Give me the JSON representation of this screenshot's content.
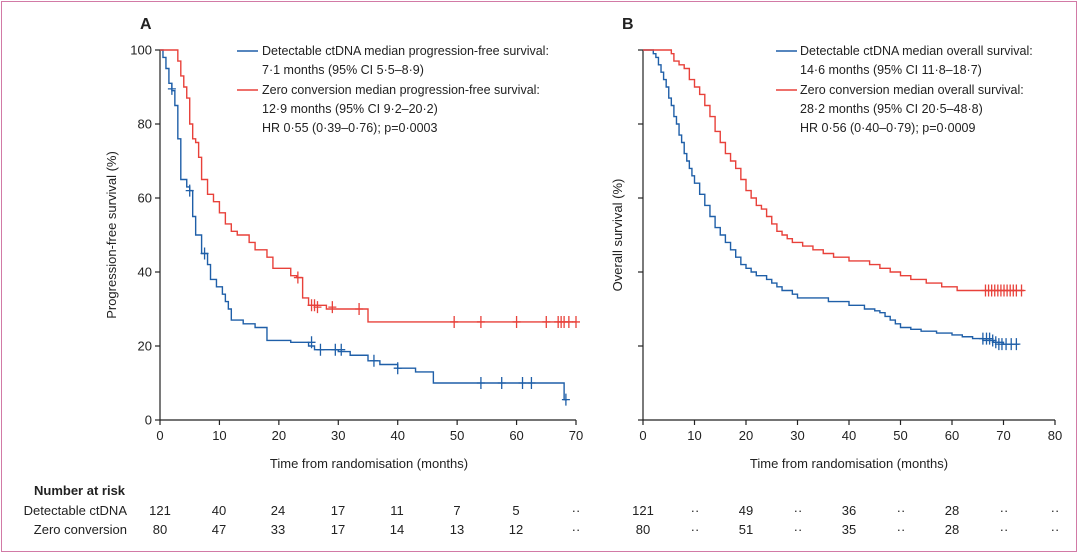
{
  "colors": {
    "blue": "#1f5fa8",
    "red": "#e8413a",
    "border": "#d27aa6",
    "axis": "#222222"
  },
  "risk_table": {
    "title": "Number at risk",
    "row_labels": [
      "Detectable ctDNA",
      "Zero conversion"
    ],
    "panel_a": {
      "detectable": [
        "121",
        "40",
        "24",
        "17",
        "11",
        "7",
        "5",
        "··"
      ],
      "zero": [
        "80",
        "47",
        "33",
        "17",
        "14",
        "13",
        "12",
        "··"
      ]
    },
    "panel_b": {
      "detectable": [
        "121",
        "··",
        "49",
        "··",
        "36",
        "··",
        "28",
        "··",
        "··"
      ],
      "zero": [
        "80",
        "··",
        "51",
        "··",
        "35",
        "··",
        "28",
        "··",
        "··"
      ]
    }
  },
  "chart_data": [
    {
      "type": "line",
      "panel_label": "A",
      "xlabel": "Time from randomisation (months)",
      "ylabel": "Progression-free survival (%)",
      "xlim": [
        0,
        70
      ],
      "ylim": [
        0,
        100
      ],
      "xticks": [
        "0",
        "10",
        "20",
        "30",
        "40",
        "50",
        "60",
        "70"
      ],
      "yticks": [
        "0",
        "20",
        "40",
        "60",
        "80",
        "100"
      ],
      "legend": [
        "Detectable ctDNA median progression-free survival:",
        "7·1 months (95% CI 5·5–8·9)",
        "Zero conversion median progression-free survival:",
        "12·9 months (95% CI 9·2–20·2)",
        "HR 0·55 (0·39–0·76); p=0·0003"
      ],
      "series": [
        {
          "name": "Detectable ctDNA",
          "color": "blue",
          "points": [
            [
              0,
              100
            ],
            [
              0.5,
              98
            ],
            [
              1,
              95
            ],
            [
              1.5,
              91
            ],
            [
              2,
              89
            ],
            [
              2.5,
              85
            ],
            [
              3,
              76
            ],
            [
              3.5,
              65
            ],
            [
              4.5,
              63
            ],
            [
              5,
              62
            ],
            [
              5.5,
              55
            ],
            [
              6,
              50
            ],
            [
              7,
              45
            ],
            [
              8,
              42
            ],
            [
              8.5,
              38
            ],
            [
              9.5,
              36
            ],
            [
              10.5,
              34
            ],
            [
              11,
              32
            ],
            [
              11.5,
              30
            ],
            [
              12,
              27
            ],
            [
              14,
              26
            ],
            [
              16,
              25
            ],
            [
              18,
              21.5
            ],
            [
              22,
              21
            ],
            [
              25,
              20
            ],
            [
              26,
              19
            ],
            [
              28,
              19
            ],
            [
              30,
              18.5
            ],
            [
              32,
              17.5
            ],
            [
              35,
              16
            ],
            [
              37,
              15
            ],
            [
              40,
              14
            ],
            [
              43,
              13
            ],
            [
              46,
              10
            ],
            [
              50,
              10
            ],
            [
              55,
              10
            ],
            [
              60,
              10
            ],
            [
              63,
              10
            ],
            [
              67.5,
              10
            ],
            [
              68,
              5.5
            ],
            [
              68.5,
              5.5
            ]
          ],
          "censored": [
            [
              2,
              89.5
            ],
            [
              5,
              62
            ],
            [
              7.5,
              45
            ],
            [
              25.5,
              21
            ],
            [
              27,
              19
            ],
            [
              29.5,
              19
            ],
            [
              30.5,
              19
            ],
            [
              36,
              16
            ],
            [
              40,
              14
            ],
            [
              54,
              10
            ],
            [
              57.5,
              10
            ],
            [
              61,
              10
            ],
            [
              62.5,
              10
            ],
            [
              68.3,
              5.5
            ]
          ]
        },
        {
          "name": "Zero conversion",
          "color": "red",
          "points": [
            [
              0,
              100
            ],
            [
              2.5,
              100
            ],
            [
              3,
              97
            ],
            [
              3.5,
              93
            ],
            [
              4,
              90
            ],
            [
              4.5,
              87
            ],
            [
              5,
              80
            ],
            [
              5.5,
              76
            ],
            [
              6,
              75
            ],
            [
              6.5,
              71
            ],
            [
              7,
              65
            ],
            [
              8,
              61
            ],
            [
              9,
              59
            ],
            [
              10,
              56
            ],
            [
              11,
              53
            ],
            [
              12,
              51
            ],
            [
              13,
              50
            ],
            [
              15,
              48
            ],
            [
              16,
              46
            ],
            [
              18,
              44
            ],
            [
              19,
              41
            ],
            [
              22,
              39
            ],
            [
              23,
              38.5
            ],
            [
              24,
              33
            ],
            [
              25,
              31
            ],
            [
              28,
              30
            ],
            [
              31,
              30
            ],
            [
              34,
              30
            ],
            [
              35,
              26.5
            ],
            [
              40,
              26.5
            ],
            [
              50,
              26.5
            ],
            [
              60,
              26.5
            ],
            [
              66,
              26.5
            ],
            [
              70,
              26.5
            ]
          ],
          "censored": [
            [
              23.2,
              38.5
            ],
            [
              25.5,
              31
            ],
            [
              26,
              31
            ],
            [
              26.5,
              30.5
            ],
            [
              29,
              30.5
            ],
            [
              33.5,
              30
            ],
            [
              49.5,
              26.5
            ],
            [
              54,
              26.5
            ],
            [
              60,
              26.5
            ],
            [
              65,
              26.5
            ],
            [
              67,
              26.5
            ],
            [
              67.5,
              26.5
            ],
            [
              68,
              26.5
            ],
            [
              68.8,
              26.5
            ],
            [
              70,
              26.5
            ]
          ]
        }
      ]
    },
    {
      "type": "line",
      "panel_label": "B",
      "xlabel": "Time from randomisation (months)",
      "ylabel": "Overall survival (%)",
      "xlim": [
        0,
        80
      ],
      "ylim": [
        0,
        100
      ],
      "xticks": [
        "0",
        "10",
        "20",
        "30",
        "40",
        "50",
        "60",
        "70",
        "80"
      ],
      "yticks": [],
      "legend": [
        "Detectable ctDNA median overall survival:",
        "14·6 months (95% CI 11·8–18·7)",
        "Zero conversion median overall survival:",
        "28·2 months (95% CI 20·5–48·8)",
        "HR 0·56 (0·40–0·79); p=0·0009"
      ],
      "series": [
        {
          "name": "Detectable ctDNA",
          "color": "blue",
          "points": [
            [
              0,
              100
            ],
            [
              1,
              100
            ],
            [
              2,
              99
            ],
            [
              2.5,
              98
            ],
            [
              3,
              96
            ],
            [
              3.5,
              94
            ],
            [
              4,
              92
            ],
            [
              4.5,
              90
            ],
            [
              5,
              87
            ],
            [
              5.5,
              85
            ],
            [
              6,
              82
            ],
            [
              6.5,
              80
            ],
            [
              7,
              77
            ],
            [
              7.5,
              75
            ],
            [
              8,
              72
            ],
            [
              8.5,
              70
            ],
            [
              9,
              68
            ],
            [
              9.5,
              66
            ],
            [
              10,
              64
            ],
            [
              11,
              61
            ],
            [
              12,
              58
            ],
            [
              13,
              55
            ],
            [
              14,
              52
            ],
            [
              15,
              50
            ],
            [
              16,
              48
            ],
            [
              17,
              46
            ],
            [
              18,
              44
            ],
            [
              19,
              42
            ],
            [
              20,
              41
            ],
            [
              21,
              40
            ],
            [
              22,
              39
            ],
            [
              24,
              38
            ],
            [
              25,
              37
            ],
            [
              26,
              36
            ],
            [
              27,
              35
            ],
            [
              29,
              34
            ],
            [
              30,
              33
            ],
            [
              34,
              33
            ],
            [
              36,
              32
            ],
            [
              40,
              31
            ],
            [
              43,
              30
            ],
            [
              45,
              29.5
            ],
            [
              46,
              29
            ],
            [
              47,
              28
            ],
            [
              48,
              27
            ],
            [
              49,
              26
            ],
            [
              50,
              25
            ],
            [
              52,
              24.5
            ],
            [
              54,
              24
            ],
            [
              57,
              23.5
            ],
            [
              60,
              23
            ],
            [
              62,
              22.5
            ],
            [
              64,
              22
            ],
            [
              66,
              21.5
            ],
            [
              68,
              21
            ],
            [
              70,
              20.5
            ],
            [
              72,
              20.5
            ],
            [
              73,
              20.5
            ]
          ],
          "censored": [
            [
              66,
              22
            ],
            [
              66.7,
              22
            ],
            [
              67.3,
              22
            ],
            [
              67.9,
              21.5
            ],
            [
              68.5,
              21
            ],
            [
              69.1,
              20.5
            ],
            [
              69.7,
              20.5
            ],
            [
              70.5,
              20.5
            ],
            [
              71.5,
              20.5
            ],
            [
              72.5,
              20.5
            ]
          ]
        },
        {
          "name": "Zero conversion",
          "color": "red",
          "points": [
            [
              0,
              100
            ],
            [
              5,
              100
            ],
            [
              5.5,
              99
            ],
            [
              6,
              97
            ],
            [
              7,
              96
            ],
            [
              8,
              95
            ],
            [
              9,
              92
            ],
            [
              10,
              90
            ],
            [
              11,
              88
            ],
            [
              12,
              85
            ],
            [
              13,
              82
            ],
            [
              14,
              78
            ],
            [
              15,
              75
            ],
            [
              16,
              72
            ],
            [
              17,
              70
            ],
            [
              18,
              68
            ],
            [
              19,
              65
            ],
            [
              20,
              62
            ],
            [
              21,
              60
            ],
            [
              22,
              58
            ],
            [
              23,
              57
            ],
            [
              24,
              55
            ],
            [
              25,
              53
            ],
            [
              26,
              51
            ],
            [
              27,
              50
            ],
            [
              28,
              49
            ],
            [
              29,
              48
            ],
            [
              31,
              47
            ],
            [
              33,
              46
            ],
            [
              35,
              45
            ],
            [
              37,
              44
            ],
            [
              40,
              43
            ],
            [
              44,
              42
            ],
            [
              46,
              41
            ],
            [
              48,
              40
            ],
            [
              50,
              39
            ],
            [
              52,
              38
            ],
            [
              55,
              37
            ],
            [
              58,
              36
            ],
            [
              61,
              35
            ],
            [
              65,
              35
            ],
            [
              70,
              35
            ],
            [
              74,
              35
            ]
          ],
          "censored": [
            [
              66.5,
              35
            ],
            [
              67.1,
              35
            ],
            [
              67.7,
              35
            ],
            [
              68.3,
              35
            ],
            [
              68.9,
              35
            ],
            [
              69.5,
              35
            ],
            [
              70.1,
              35
            ],
            [
              70.7,
              35
            ],
            [
              71.3,
              35
            ],
            [
              71.9,
              35
            ],
            [
              72.5,
              35
            ],
            [
              73.5,
              35
            ]
          ]
        }
      ]
    }
  ]
}
